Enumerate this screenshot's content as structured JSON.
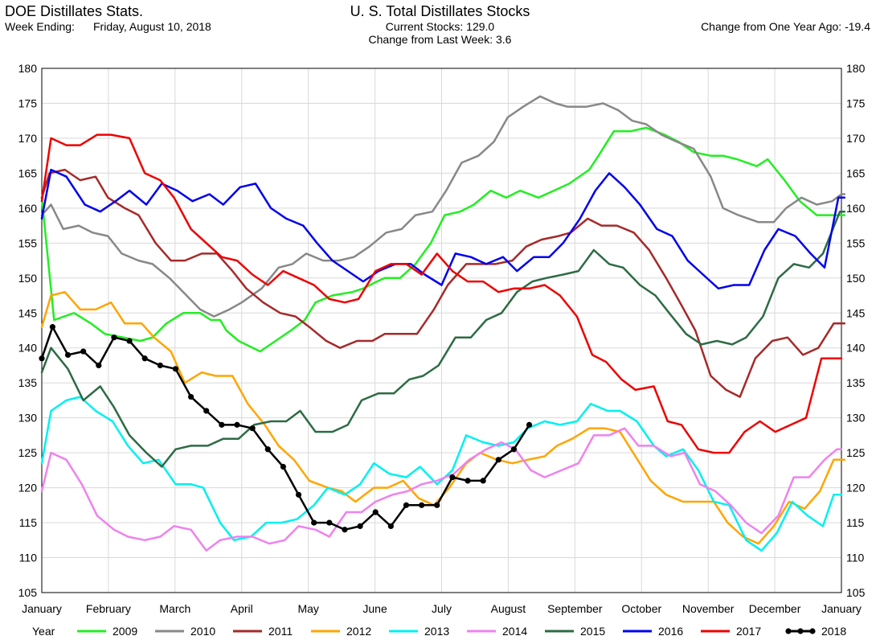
{
  "header": {
    "left_title": "DOE Distillates Stats.",
    "week_label": "Week Ending:",
    "week_value": "Friday, August 10, 2018",
    "center_title": "U. S. Total Distillates Stocks",
    "current_stocks": "Current Stocks: 129.0",
    "change_last_week": "Change from Last Week:   3.6",
    "change_year": "Change from One Year Ago: -19.4"
  },
  "chart_data": {
    "type": "line",
    "title": "U. S. Total Distillates Stocks",
    "xlabel": "",
    "ylabel": "",
    "ylim": [
      105,
      180
    ],
    "yticks": [
      105,
      110,
      115,
      120,
      125,
      130,
      135,
      140,
      145,
      150,
      155,
      160,
      165,
      170,
      175,
      180
    ],
    "months": [
      "January",
      "February",
      "March",
      "April",
      "May",
      "June",
      "July",
      "August",
      "September",
      "October",
      "November",
      "December",
      "January"
    ],
    "grid": true,
    "legend_position": "bottom",
    "legend_title": "Year",
    "series": [
      {
        "name": "2009",
        "color": "#22ee22",
        "x": [
          0.0,
          0.8,
          2.1,
          3.2,
          4.1,
          5.3,
          6.4,
          7.2,
          8.1,
          9.2,
          10.3,
          11.0,
          11.6,
          12.0,
          12.8,
          14.2,
          16.2,
          17.1,
          17.8,
          18.9,
          20.2,
          20.9,
          21.8,
          22.3,
          23.3,
          24.3,
          25.3,
          26.2,
          27.2,
          28.1,
          29.2,
          30.2,
          31.1,
          32.3,
          33.3,
          34.3,
          35.6,
          36.2,
          37.2,
          38.3,
          39.3,
          40.5,
          41.4,
          42.4,
          43.5,
          44.3,
          45.2,
          46.5,
          47.2,
          48.3,
          49.3,
          50.4,
          51.2,
          52.1,
          52.2
        ],
        "values": [
          161.5,
          144.0,
          145.0,
          143.5,
          142.0,
          141.5,
          141.0,
          141.5,
          143.5,
          145.0,
          145.0,
          144.0,
          144.0,
          142.5,
          141.0,
          139.5,
          142.5,
          144.0,
          146.5,
          147.5,
          148.0,
          148.5,
          149.5,
          150.0,
          150.0,
          152.0,
          155.0,
          159.0,
          159.5,
          160.5,
          162.5,
          161.5,
          162.5,
          161.5,
          162.5,
          163.5,
          165.5,
          167.5,
          171.0,
          171.0,
          171.5,
          170.5,
          169.5,
          168.0,
          167.5,
          167.5,
          167.0,
          166.0,
          167.0,
          164.0,
          161.0,
          159.0,
          159.0,
          159.0,
          159.0
        ]
      },
      {
        "name": "2010",
        "color": "#888888",
        "x": [
          0.0,
          0.6,
          1.4,
          2.4,
          3.3,
          4.3,
          5.2,
          6.3,
          7.2,
          8.3,
          9.2,
          10.3,
          11.2,
          12.2,
          13.0,
          14.3,
          15.4,
          16.3,
          17.2,
          18.3,
          19.3,
          20.3,
          21.3,
          22.4,
          23.4,
          24.3,
          25.4,
          26.3,
          27.3,
          28.4,
          29.4,
          30.3,
          31.3,
          32.4,
          33.4,
          34.2,
          35.4,
          36.5,
          37.5,
          38.4,
          39.3,
          40.3,
          41.3,
          42.4,
          43.5,
          44.3,
          45.3,
          46.6,
          47.6,
          48.4,
          49.4,
          50.4,
          51.4,
          52.0,
          52.2
        ],
        "values": [
          159.0,
          160.5,
          157.0,
          157.5,
          156.5,
          156.0,
          153.5,
          152.5,
          152.0,
          150.0,
          148.0,
          145.5,
          144.5,
          145.5,
          146.5,
          148.5,
          151.5,
          152.0,
          153.5,
          152.5,
          152.5,
          153.0,
          154.5,
          156.5,
          157.0,
          159.0,
          159.5,
          162.5,
          166.5,
          167.5,
          169.5,
          173.0,
          174.5,
          176.0,
          175.0,
          174.5,
          174.5,
          175.0,
          174.0,
          172.5,
          172.0,
          170.5,
          169.5,
          168.5,
          164.5,
          160.0,
          159.0,
          158.0,
          158.0,
          160.0,
          161.5,
          160.5,
          161.0,
          162.0,
          162.0
        ]
      },
      {
        "name": "2011",
        "color": "#a52a2a",
        "x": [
          0.0,
          0.5,
          1.5,
          2.5,
          3.5,
          4.3,
          5.4,
          6.3,
          7.4,
          8.4,
          9.3,
          10.4,
          11.4,
          12.4,
          13.3,
          14.4,
          15.5,
          16.5,
          17.4,
          18.5,
          19.4,
          20.5,
          21.5,
          22.3,
          23.4,
          24.4,
          25.5,
          26.4,
          27.6,
          28.5,
          29.5,
          30.6,
          31.5,
          32.5,
          33.6,
          34.4,
          35.5,
          36.4,
          37.4,
          38.5,
          39.5,
          40.6,
          41.5,
          42.5,
          43.5,
          44.5,
          45.4,
          46.4,
          47.5,
          48.5,
          49.5,
          50.5,
          51.5,
          52.2
        ],
        "values": [
          161.5,
          165.0,
          165.5,
          164.0,
          164.5,
          161.5,
          160.0,
          159.0,
          155.0,
          152.5,
          152.5,
          153.5,
          153.5,
          151.0,
          148.5,
          146.5,
          145.0,
          144.5,
          143.0,
          141.0,
          140.0,
          141.0,
          141.0,
          142.0,
          142.0,
          142.0,
          145.5,
          149.0,
          152.0,
          152.0,
          152.0,
          152.5,
          154.5,
          155.5,
          156.0,
          156.5,
          158.5,
          157.5,
          157.5,
          156.5,
          154.0,
          150.0,
          146.5,
          142.5,
          136.0,
          134.0,
          133.0,
          138.5,
          141.0,
          141.5,
          139.0,
          140.0,
          143.5,
          143.5
        ]
      },
      {
        "name": "2012",
        "color": "#ffa500",
        "x": [
          0.0,
          0.6,
          1.5,
          2.5,
          3.5,
          4.5,
          5.4,
          6.5,
          7.3,
          8.4,
          9.3,
          10.4,
          11.3,
          12.4,
          13.4,
          14.5,
          15.4,
          16.4,
          17.4,
          18.6,
          19.5,
          20.4,
          21.6,
          22.5,
          23.5,
          24.5,
          25.5,
          26.5,
          27.6,
          28.5,
          29.6,
          30.6,
          31.6,
          32.7,
          33.5,
          34.5,
          35.6,
          36.6,
          37.6,
          38.6,
          39.6,
          40.6,
          41.7,
          42.6,
          43.7,
          44.6,
          45.6,
          46.6,
          47.6,
          48.6,
          49.6,
          50.6,
          51.5,
          52.2
        ],
        "values": [
          143.0,
          147.5,
          148.0,
          145.5,
          145.5,
          146.5,
          143.5,
          143.5,
          141.5,
          139.5,
          135.0,
          136.5,
          136.0,
          136.0,
          132.0,
          129.0,
          126.0,
          124.0,
          121.0,
          120.0,
          119.5,
          118.0,
          120.0,
          120.0,
          121.0,
          118.5,
          117.5,
          120.0,
          123.5,
          125.0,
          124.0,
          123.5,
          124.0,
          124.5,
          126.0,
          127.0,
          128.5,
          128.5,
          128.0,
          124.5,
          121.0,
          119.0,
          118.0,
          118.0,
          118.0,
          115.0,
          113.0,
          112.0,
          114.5,
          118.0,
          117.0,
          119.5,
          124.0,
          124.0
        ]
      },
      {
        "name": "2013",
        "color": "#00f0f0",
        "x": [
          0.0,
          0.6,
          1.6,
          2.5,
          3.5,
          4.6,
          5.6,
          6.6,
          7.6,
          8.7,
          9.7,
          10.5,
          11.6,
          12.5,
          13.6,
          14.6,
          15.6,
          16.6,
          17.7,
          18.6,
          19.7,
          20.7,
          21.6,
          22.6,
          23.7,
          24.6,
          25.7,
          26.7,
          27.6,
          28.7,
          29.7,
          30.7,
          31.6,
          32.7,
          33.7,
          34.8,
          35.7,
          36.8,
          37.6,
          38.7,
          39.8,
          40.6,
          41.7,
          42.7,
          43.7,
          44.7,
          45.8,
          46.8,
          47.8,
          48.8,
          49.8,
          50.8,
          51.5,
          52.0
        ],
        "values": [
          123.5,
          131.0,
          132.5,
          133.0,
          131.0,
          129.5,
          126.0,
          123.5,
          124.0,
          120.5,
          120.5,
          120.0,
          115.0,
          112.5,
          113.0,
          115.0,
          115.0,
          115.5,
          117.5,
          120.0,
          119.0,
          120.5,
          123.5,
          122.0,
          121.5,
          123.0,
          120.5,
          122.5,
          127.5,
          126.5,
          126.0,
          126.5,
          128.5,
          129.5,
          129.0,
          129.5,
          132.0,
          131.0,
          131.0,
          129.5,
          126.0,
          124.5,
          125.5,
          122.5,
          118.0,
          117.5,
          112.5,
          111.0,
          113.5,
          118.0,
          116.0,
          114.5,
          119.0,
          119.0
        ]
      },
      {
        "name": "2014",
        "color": "#ee82ee",
        "x": [
          0.0,
          0.6,
          1.6,
          2.6,
          3.6,
          4.7,
          5.6,
          6.7,
          7.7,
          8.6,
          9.7,
          10.7,
          11.6,
          12.7,
          13.7,
          14.8,
          15.8,
          16.7,
          17.8,
          18.7,
          19.8,
          20.8,
          21.7,
          22.8,
          23.8,
          24.7,
          25.7,
          26.8,
          27.8,
          28.9,
          29.9,
          30.8,
          31.8,
          32.7,
          33.8,
          34.9,
          35.9,
          36.9,
          37.9,
          38.8,
          39.8,
          40.9,
          41.8,
          42.8,
          43.8,
          44.8,
          45.8,
          46.8,
          47.9,
          48.9,
          49.9,
          50.9,
          51.7,
          52.0
        ],
        "values": [
          119.5,
          125.0,
          124.0,
          120.5,
          116.0,
          114.0,
          113.0,
          112.5,
          113.0,
          114.5,
          114.0,
          111.0,
          112.5,
          113.0,
          113.0,
          112.0,
          112.5,
          114.5,
          114.0,
          113.0,
          116.5,
          116.5,
          118.0,
          119.0,
          119.5,
          120.5,
          121.0,
          122.0,
          124.0,
          125.5,
          126.5,
          125.5,
          122.5,
          121.5,
          122.5,
          123.5,
          127.5,
          127.5,
          128.5,
          126.0,
          126.0,
          124.5,
          125.0,
          120.5,
          119.5,
          117.5,
          115.0,
          113.5,
          116.0,
          121.5,
          121.5,
          124.0,
          125.5,
          125.5
        ]
      },
      {
        "name": "2015",
        "color": "#2e6b45",
        "x": [
          0.0,
          0.6,
          1.7,
          2.7,
          3.8,
          4.7,
          5.7,
          6.8,
          7.8,
          8.7,
          9.7,
          10.8,
          11.8,
          12.8,
          13.8,
          14.9,
          15.9,
          16.8,
          17.8,
          18.9,
          19.9,
          20.8,
          21.9,
          22.9,
          23.9,
          24.8,
          25.8,
          26.9,
          27.9,
          28.9,
          29.9,
          30.9,
          31.9,
          32.8,
          33.9,
          34.9,
          35.9,
          36.9,
          37.8,
          38.9,
          39.9,
          40.8,
          41.9,
          42.9,
          43.9,
          44.9,
          45.8,
          46.9,
          47.9,
          48.9,
          49.9,
          50.8,
          51.9,
          52.2
        ],
        "values": [
          136.5,
          140.0,
          137.0,
          132.5,
          134.5,
          131.5,
          127.5,
          125.0,
          123.0,
          125.5,
          126.0,
          126.0,
          127.0,
          127.0,
          129.0,
          129.5,
          129.5,
          131.0,
          128.0,
          128.0,
          129.0,
          132.5,
          133.5,
          133.5,
          135.5,
          136.0,
          137.5,
          141.5,
          141.5,
          144.0,
          145.0,
          148.0,
          149.5,
          150.0,
          150.5,
          151.0,
          154.0,
          152.0,
          151.5,
          149.0,
          147.5,
          145.0,
          142.0,
          140.5,
          141.0,
          140.5,
          141.5,
          144.5,
          150.0,
          152.0,
          151.5,
          153.5,
          159.5,
          159.5
        ]
      },
      {
        "name": "2016",
        "color": "#0000ee",
        "x": [
          0.0,
          0.6,
          1.6,
          2.8,
          3.8,
          4.8,
          5.7,
          6.8,
          7.8,
          8.8,
          9.8,
          10.9,
          11.8,
          12.9,
          13.9,
          14.9,
          15.9,
          17.0,
          17.9,
          18.9,
          19.9,
          20.9,
          21.9,
          23.0,
          24.0,
          24.9,
          26.0,
          26.9,
          27.9,
          28.9,
          30.0,
          30.9,
          32.0,
          33.0,
          33.9,
          35.0,
          36.0,
          36.9,
          37.9,
          38.9,
          40.0,
          41.0,
          42.0,
          43.0,
          44.0,
          45.0,
          46.0,
          47.0,
          47.9,
          49.0,
          50.0,
          50.9,
          51.8,
          52.2
        ],
        "values": [
          158.5,
          165.5,
          164.5,
          160.5,
          159.5,
          161.0,
          162.5,
          160.5,
          163.5,
          162.5,
          161.0,
          162.0,
          160.5,
          163.0,
          163.5,
          160.0,
          158.5,
          157.5,
          155.0,
          152.5,
          151.0,
          149.5,
          151.0,
          152.0,
          152.0,
          150.5,
          149.0,
          153.5,
          153.0,
          152.0,
          153.0,
          151.0,
          153.0,
          153.0,
          155.0,
          158.5,
          162.5,
          165.0,
          163.0,
          160.5,
          157.0,
          156.0,
          152.5,
          150.5,
          148.5,
          149.0,
          149.0,
          154.0,
          157.0,
          156.0,
          153.5,
          151.5,
          161.5,
          161.5
        ]
      },
      {
        "name": "2017",
        "color": "#ee0000",
        "x": [
          0.0,
          0.6,
          1.6,
          2.5,
          3.6,
          4.5,
          5.7,
          6.7,
          7.7,
          8.6,
          9.7,
          10.7,
          11.7,
          12.7,
          13.7,
          14.7,
          15.7,
          16.7,
          17.7,
          18.7,
          19.7,
          20.6,
          21.7,
          22.7,
          23.7,
          24.7,
          25.7,
          26.7,
          27.7,
          28.7,
          29.7,
          30.7,
          31.7,
          32.7,
          33.7,
          34.8,
          35.8,
          36.7,
          37.7,
          38.6,
          39.8,
          40.7,
          41.6,
          42.7,
          43.7,
          44.7,
          45.7,
          46.7,
          47.7,
          48.7,
          49.7,
          50.7,
          51.7,
          52.0
        ],
        "values": [
          161.0,
          170.0,
          169.0,
          169.0,
          170.5,
          170.5,
          170.0,
          165.0,
          164.0,
          161.5,
          157.0,
          155.0,
          153.0,
          152.5,
          150.5,
          149.0,
          151.0,
          150.0,
          149.0,
          147.0,
          146.5,
          147.0,
          151.0,
          152.0,
          152.0,
          150.5,
          153.5,
          151.0,
          149.5,
          149.5,
          148.0,
          148.5,
          148.5,
          149.0,
          147.5,
          144.5,
          139.0,
          138.0,
          135.5,
          134.0,
          134.5,
          129.5,
          129.0,
          125.5,
          125.0,
          125.0,
          128.0,
          129.5,
          128.0,
          129.0,
          130.0,
          138.5,
          138.5,
          138.5
        ]
      },
      {
        "name": "2018",
        "color": "#000000",
        "x": [
          0.0,
          0.7,
          1.7,
          2.7,
          3.7,
          4.7,
          5.7,
          6.7,
          7.7,
          8.7,
          9.7,
          10.7,
          11.7,
          12.7,
          13.7,
          14.7,
          15.7,
          16.7,
          17.7,
          18.7,
          19.7,
          20.7,
          21.7,
          22.7,
          23.7,
          24.7,
          25.7,
          26.7,
          27.7,
          28.7,
          29.7,
          30.7,
          31.7
        ],
        "values": [
          138.5,
          143.0,
          139.0,
          139.5,
          137.5,
          141.5,
          141.0,
          138.5,
          137.5,
          137.0,
          133.0,
          131.0,
          129.0,
          129.0,
          128.5,
          125.5,
          123.0,
          119.0,
          115.0,
          115.0,
          114.0,
          114.5,
          116.5,
          114.5,
          117.5,
          117.5,
          117.5,
          121.5,
          121.0,
          121.0,
          124.0,
          125.5,
          129.0
        ],
        "markers": true
      }
    ]
  }
}
